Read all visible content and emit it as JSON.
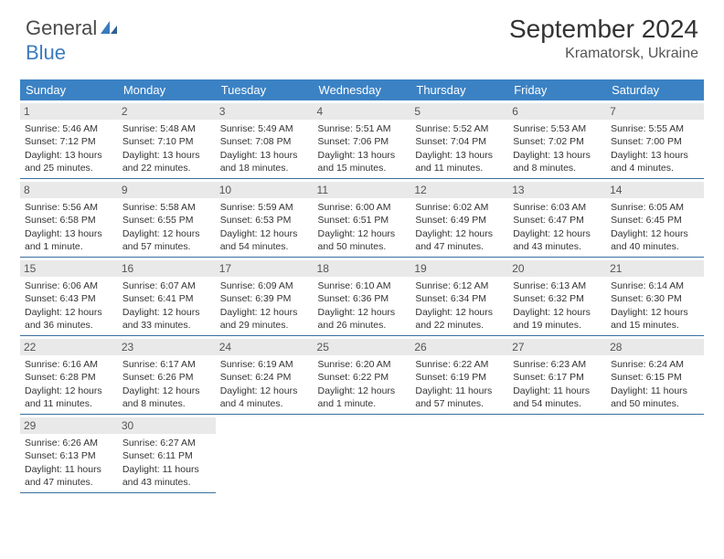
{
  "brand": {
    "part1": "General",
    "part2": "Blue"
  },
  "title": "September 2024",
  "location": "Kramatorsk, Ukraine",
  "colors": {
    "header_bg": "#3b82c4",
    "day_head_bg": "#e9e9e9",
    "rule": "#3b6fa0",
    "brand_blue": "#3b7bbf"
  },
  "weekdays": [
    "Sunday",
    "Monday",
    "Tuesday",
    "Wednesday",
    "Thursday",
    "Friday",
    "Saturday"
  ],
  "weeks": [
    [
      {
        "n": "1",
        "sr": "5:46 AM",
        "ss": "7:12 PM",
        "dl": "13 hours and 25 minutes."
      },
      {
        "n": "2",
        "sr": "5:48 AM",
        "ss": "7:10 PM",
        "dl": "13 hours and 22 minutes."
      },
      {
        "n": "3",
        "sr": "5:49 AM",
        "ss": "7:08 PM",
        "dl": "13 hours and 18 minutes."
      },
      {
        "n": "4",
        "sr": "5:51 AM",
        "ss": "7:06 PM",
        "dl": "13 hours and 15 minutes."
      },
      {
        "n": "5",
        "sr": "5:52 AM",
        "ss": "7:04 PM",
        "dl": "13 hours and 11 minutes."
      },
      {
        "n": "6",
        "sr": "5:53 AM",
        "ss": "7:02 PM",
        "dl": "13 hours and 8 minutes."
      },
      {
        "n": "7",
        "sr": "5:55 AM",
        "ss": "7:00 PM",
        "dl": "13 hours and 4 minutes."
      }
    ],
    [
      {
        "n": "8",
        "sr": "5:56 AM",
        "ss": "6:58 PM",
        "dl": "13 hours and 1 minute."
      },
      {
        "n": "9",
        "sr": "5:58 AM",
        "ss": "6:55 PM",
        "dl": "12 hours and 57 minutes."
      },
      {
        "n": "10",
        "sr": "5:59 AM",
        "ss": "6:53 PM",
        "dl": "12 hours and 54 minutes."
      },
      {
        "n": "11",
        "sr": "6:00 AM",
        "ss": "6:51 PM",
        "dl": "12 hours and 50 minutes."
      },
      {
        "n": "12",
        "sr": "6:02 AM",
        "ss": "6:49 PM",
        "dl": "12 hours and 47 minutes."
      },
      {
        "n": "13",
        "sr": "6:03 AM",
        "ss": "6:47 PM",
        "dl": "12 hours and 43 minutes."
      },
      {
        "n": "14",
        "sr": "6:05 AM",
        "ss": "6:45 PM",
        "dl": "12 hours and 40 minutes."
      }
    ],
    [
      {
        "n": "15",
        "sr": "6:06 AM",
        "ss": "6:43 PM",
        "dl": "12 hours and 36 minutes."
      },
      {
        "n": "16",
        "sr": "6:07 AM",
        "ss": "6:41 PM",
        "dl": "12 hours and 33 minutes."
      },
      {
        "n": "17",
        "sr": "6:09 AM",
        "ss": "6:39 PM",
        "dl": "12 hours and 29 minutes."
      },
      {
        "n": "18",
        "sr": "6:10 AM",
        "ss": "6:36 PM",
        "dl": "12 hours and 26 minutes."
      },
      {
        "n": "19",
        "sr": "6:12 AM",
        "ss": "6:34 PM",
        "dl": "12 hours and 22 minutes."
      },
      {
        "n": "20",
        "sr": "6:13 AM",
        "ss": "6:32 PM",
        "dl": "12 hours and 19 minutes."
      },
      {
        "n": "21",
        "sr": "6:14 AM",
        "ss": "6:30 PM",
        "dl": "12 hours and 15 minutes."
      }
    ],
    [
      {
        "n": "22",
        "sr": "6:16 AM",
        "ss": "6:28 PM",
        "dl": "12 hours and 11 minutes."
      },
      {
        "n": "23",
        "sr": "6:17 AM",
        "ss": "6:26 PM",
        "dl": "12 hours and 8 minutes."
      },
      {
        "n": "24",
        "sr": "6:19 AM",
        "ss": "6:24 PM",
        "dl": "12 hours and 4 minutes."
      },
      {
        "n": "25",
        "sr": "6:20 AM",
        "ss": "6:22 PM",
        "dl": "12 hours and 1 minute."
      },
      {
        "n": "26",
        "sr": "6:22 AM",
        "ss": "6:19 PM",
        "dl": "11 hours and 57 minutes."
      },
      {
        "n": "27",
        "sr": "6:23 AM",
        "ss": "6:17 PM",
        "dl": "11 hours and 54 minutes."
      },
      {
        "n": "28",
        "sr": "6:24 AM",
        "ss": "6:15 PM",
        "dl": "11 hours and 50 minutes."
      }
    ],
    [
      {
        "n": "29",
        "sr": "6:26 AM",
        "ss": "6:13 PM",
        "dl": "11 hours and 47 minutes."
      },
      {
        "n": "30",
        "sr": "6:27 AM",
        "ss": "6:11 PM",
        "dl": "11 hours and 43 minutes."
      },
      null,
      null,
      null,
      null,
      null
    ]
  ],
  "labels": {
    "sunrise": "Sunrise: ",
    "sunset": "Sunset: ",
    "daylight": "Daylight: "
  }
}
